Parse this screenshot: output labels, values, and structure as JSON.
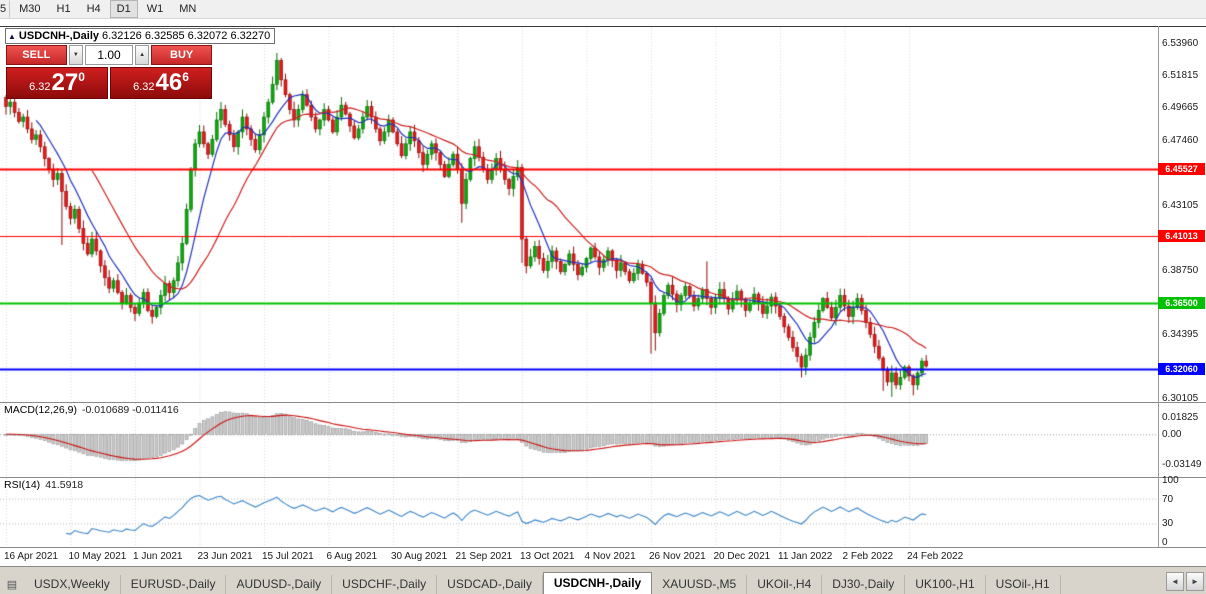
{
  "toolbar": {
    "buttons": [
      "5",
      "M30",
      "H1",
      "H4",
      "D1",
      "W1",
      "MN"
    ],
    "active": "D1"
  },
  "icons": {
    "symbol_marker": "▲",
    "spinner_up": "▲",
    "spinner_down": "▼",
    "tab_list": "▤",
    "scroll_left": "◄",
    "scroll_right": "►"
  },
  "chart": {
    "quote_box": {
      "symbol": "USDCNH-,Daily",
      "ohlc": "6.32126 6.32585 6.32072 6.32270"
    },
    "trade_panel": {
      "sell_label": "SELL",
      "buy_label": "BUY",
      "volume": "1.00",
      "bid": {
        "prefix": "6.32",
        "big": "27",
        "sup": "0"
      },
      "ask": {
        "prefix": "6.32",
        "big": "46",
        "sup": "6"
      }
    }
  },
  "tabs": {
    "items": [
      "USDX,Weekly",
      "EURUSD-,Daily",
      "AUDUSD-,Daily",
      "USDCHF-,Daily",
      "USDCAD-,Daily",
      "USDCNH-,Daily",
      "XAUUSD-,M5",
      "UKOil-,H4",
      "DJ30-,Daily",
      "UK100-,H1",
      "USOil-,H1"
    ],
    "active_index": 5
  },
  "chart_data": {
    "type": "candlestick",
    "symbol": "USDCNH-",
    "timeframe": "Daily",
    "title": "USDCNH-,Daily",
    "price_range": {
      "top": 6.5505,
      "bottom": 6.2985
    },
    "price_axis_ticks": [
      "6.53960",
      "6.51815",
      "6.49665",
      "6.47460",
      "6.43105",
      "6.38750",
      "6.34395",
      "6.30105"
    ],
    "levels": [
      {
        "price": 6.45527,
        "label": "6.45527",
        "color": "#ff0000",
        "width": 2
      },
      {
        "price": 6.41013,
        "label": "6.41013",
        "color": "#ff0000",
        "width": 1
      },
      {
        "price": 6.365,
        "label": "6.36500",
        "color": "#00c000",
        "width": 2
      },
      {
        "price": 6.3206,
        "label": "6.32060",
        "color": "#0000ff",
        "width": 2
      }
    ],
    "x_label_every": 15,
    "x_labels": [
      "16 Apr 2021",
      "10 May 2021",
      "1 Jun 2021",
      "23 Jun 2021",
      "15 Jul 2021",
      "6 Aug 2021",
      "30 Aug 2021",
      "21 Sep 2021",
      "13 Oct 2021",
      "4 Nov 2021",
      "26 Nov 2021",
      "20 Dec 2021",
      "11 Jan 2022",
      "2 Feb 2022",
      "24 Feb 2022"
    ],
    "candles": {
      "first_open": 6.503,
      "closes": [
        6.497,
        6.5,
        6.493,
        6.487,
        6.49,
        6.482,
        6.475,
        6.478,
        6.47,
        6.462,
        6.455,
        6.448,
        6.452,
        6.44,
        6.43,
        6.422,
        6.428,
        6.415,
        6.405,
        6.398,
        6.408,
        6.4,
        6.39,
        6.382,
        6.375,
        6.38,
        6.372,
        6.365,
        6.37,
        6.362,
        6.358,
        6.365,
        6.372,
        6.36,
        6.356,
        6.362,
        6.37,
        6.378,
        6.372,
        6.38,
        6.392,
        6.405,
        6.428,
        6.455,
        6.472,
        6.48,
        6.472,
        6.465,
        6.475,
        6.488,
        6.495,
        6.485,
        6.478,
        6.47,
        6.48,
        6.49,
        6.482,
        6.475,
        6.468,
        6.478,
        6.49,
        6.5,
        6.512,
        6.528,
        6.515,
        6.505,
        6.495,
        6.488,
        6.495,
        6.505,
        6.498,
        6.49,
        6.482,
        6.488,
        6.495,
        6.488,
        6.48,
        6.49,
        6.498,
        6.492,
        6.484,
        6.476,
        6.482,
        6.49,
        6.497,
        6.49,
        6.482,
        6.474,
        6.48,
        6.488,
        6.48,
        6.472,
        6.464,
        6.472,
        6.48,
        6.474,
        6.466,
        6.458,
        6.465,
        6.472,
        6.466,
        6.458,
        6.45,
        6.458,
        6.465,
        6.455,
        6.432,
        6.448,
        6.462,
        6.47,
        6.463,
        6.455,
        6.448,
        6.455,
        6.462,
        6.455,
        6.448,
        6.442,
        6.45,
        6.456,
        6.408,
        6.39,
        6.396,
        6.403,
        6.395,
        6.387,
        6.393,
        6.4,
        6.393,
        6.386,
        6.391,
        6.398,
        6.391,
        6.384,
        6.389,
        6.395,
        6.402,
        6.396,
        6.389,
        6.394,
        6.4,
        6.394,
        6.387,
        6.392,
        6.386,
        6.38,
        6.385,
        6.391,
        6.385,
        6.379,
        6.365,
        6.345,
        6.358,
        6.37,
        6.377,
        6.371,
        6.364,
        6.37,
        6.376,
        6.37,
        6.363,
        6.368,
        6.374,
        6.368,
        6.362,
        6.368,
        6.374,
        6.368,
        6.361,
        6.367,
        6.373,
        6.367,
        6.36,
        6.365,
        6.371,
        6.365,
        6.358,
        6.363,
        6.369,
        6.363,
        6.356,
        6.349,
        6.342,
        6.335,
        6.329,
        6.322,
        6.33,
        6.342,
        6.352,
        6.36,
        6.368,
        6.362,
        6.355,
        6.362,
        6.37,
        6.363,
        6.356,
        6.362,
        6.368,
        6.36,
        6.352,
        6.344,
        6.336,
        6.328,
        6.32,
        6.312,
        6.318,
        6.31,
        6.315,
        6.322,
        6.316,
        6.31,
        6.318,
        6.326,
        6.3227
      ],
      "overrides": {
        "13": {
          "low": 6.404
        },
        "63": {
          "high": 6.533
        },
        "106": {
          "low": 6.419
        },
        "120": {
          "low": 6.392
        },
        "150": {
          "low": 6.331
        },
        "151": {
          "low": 6.333
        },
        "163": {
          "high": 6.393
        },
        "185": {
          "low": 6.315
        },
        "204": {
          "low": 6.306
        },
        "206": {
          "low": 6.302
        },
        "211": {
          "low": 6.303
        },
        "214": {
          "high": 6.33
        }
      }
    },
    "moving_averages": [
      {
        "period": 8,
        "color": "#2233bb"
      },
      {
        "period": 21,
        "color": "#cc2222"
      }
    ],
    "macd": {
      "label": "MACD(12,26,9)",
      "values_text": "-0.010689 -0.011416",
      "fast": 12,
      "slow": 26,
      "signal": 9,
      "scale": {
        "top": 0.033,
        "bottom": -0.045
      },
      "axis_ticks": [
        "0.01825",
        "0.00",
        "-0.03149"
      ]
    },
    "rsi": {
      "label": "RSI(14)",
      "value_text": "41.5918",
      "period": 14,
      "levels": [
        70,
        30
      ],
      "axis_ticks": [
        "100",
        "70",
        "30",
        "0"
      ]
    },
    "colors": {
      "up_fill": "#0fa60f",
      "up_stroke": "#067006",
      "down_fill": "#e31b1b",
      "down_stroke": "#8f0c0c",
      "grid": "#d9d9d9",
      "macd_hist_fill": "#c9c9c9",
      "macd_hist_stroke": "#9a9a9a",
      "macd_signal": "#cc1111",
      "rsi_line": "#3d85c8"
    }
  }
}
